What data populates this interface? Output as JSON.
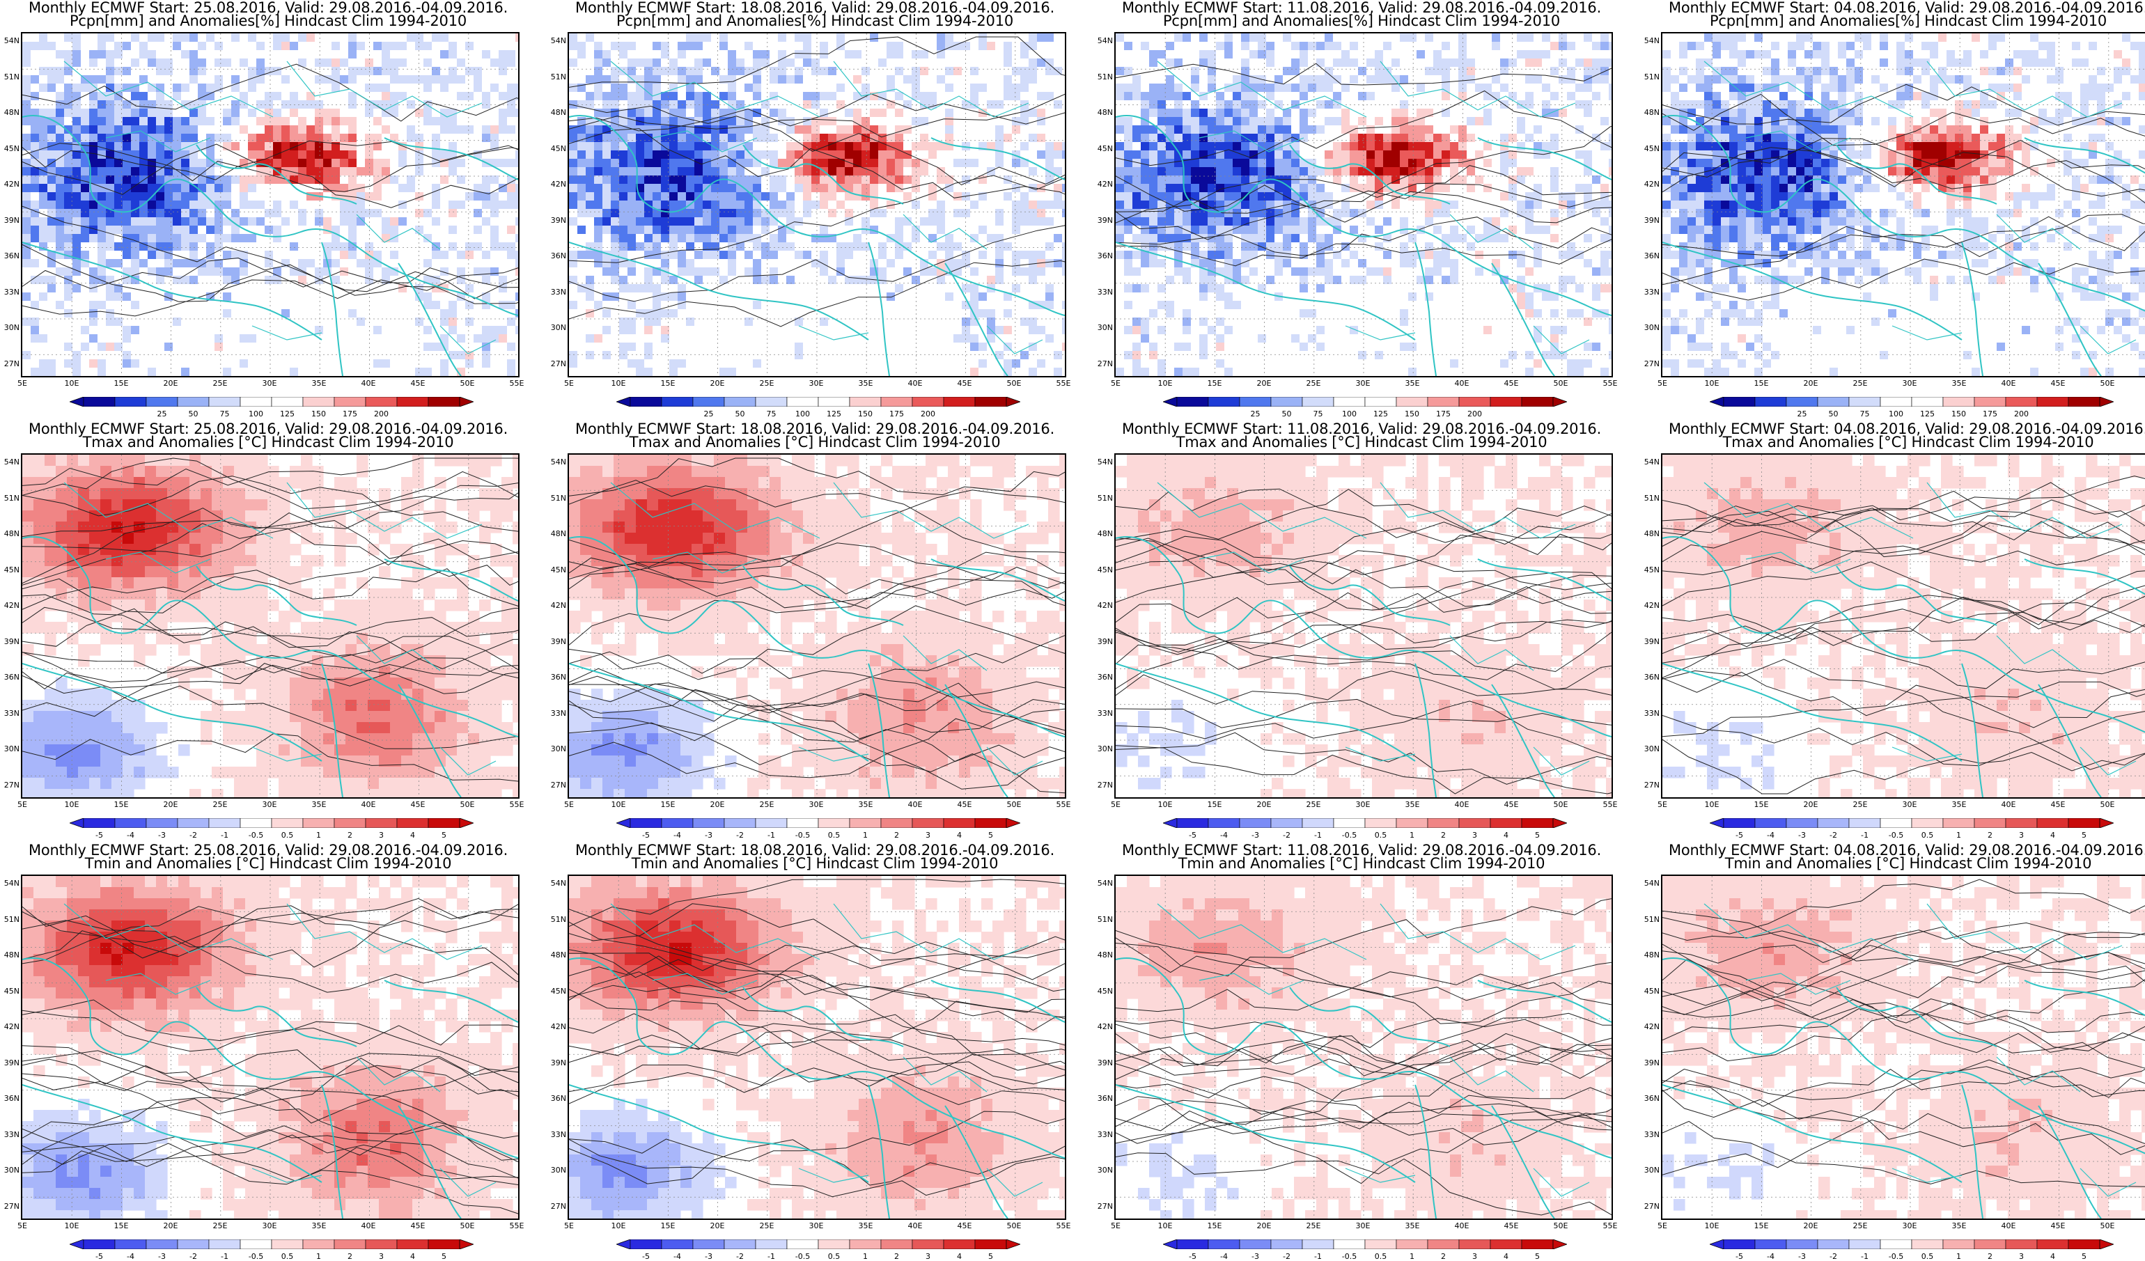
{
  "panels": [
    {
      "line1": "Monthly ECMWF Start: 25.08.2016, Valid: 29.08.2016.-04.09.2016.",
      "line2": "Pcpn[mm] and Anomalies[%] Hindcast Clim 1994-2010",
      "var": "pcpn"
    },
    {
      "line1": "Monthly ECMWF Start: 18.08.2016, Valid: 29.08.2016.-04.09.2016.",
      "line2": "Pcpn[mm] and Anomalies[%] Hindcast Clim 1994-2010",
      "var": "pcpn"
    },
    {
      "line1": "Monthly ECMWF Start: 11.08.2016, Valid: 29.08.2016.-04.09.2016.",
      "line2": "Pcpn[mm] and Anomalies[%] Hindcast Clim 1994-2010",
      "var": "pcpn"
    },
    {
      "line1": "Monthly ECMWF Start: 04.08.2016, Valid: 29.08.2016.-04.09.2016.",
      "line2": "Pcpn[mm] and Anomalies[%] Hindcast Clim 1994-2010",
      "var": "pcpn"
    },
    {
      "line1": "Monthly ECMWF Start: 25.08.2016, Valid: 29.08.2016.-04.09.2016.",
      "line2": "Tmax and Anomalies [°C] Hindcast Clim 1994-2010",
      "var": "tmax"
    },
    {
      "line1": "Monthly ECMWF Start: 18.08.2016, Valid: 29.08.2016.-04.09.2016.",
      "line2": "Tmax and Anomalies [°C] Hindcast Clim 1994-2010",
      "var": "tmax"
    },
    {
      "line1": "Monthly ECMWF Start: 11.08.2016, Valid: 29.08.2016.-04.09.2016.",
      "line2": "Tmax and Anomalies [°C] Hindcast Clim 1994-2010",
      "var": "tmax"
    },
    {
      "line1": "Monthly ECMWF Start: 04.08.2016, Valid: 29.08.2016.-04.09.2016.",
      "line2": "Tmax and Anomalies [°C] Hindcast Clim 1994-2010",
      "var": "tmax"
    },
    {
      "line1": "Monthly ECMWF Start: 25.08.2016, Valid: 29.08.2016.-04.09.2016.",
      "line2": "Tmin and Anomalies [°C] Hindcast Clim 1994-2010",
      "var": "tmin"
    },
    {
      "line1": "Monthly ECMWF Start: 18.08.2016, Valid: 29.08.2016.-04.09.2016.",
      "line2": "Tmin and Anomalies [°C] Hindcast Clim 1994-2010",
      "var": "tmin"
    },
    {
      "line1": "Monthly ECMWF Start: 11.08.2016, Valid: 29.08.2016.-04.09.2016.",
      "line2": "Tmin and Anomalies [°C] Hindcast Clim 1994-2010",
      "var": "tmin"
    },
    {
      "line1": "Monthly ECMWF Start: 04.08.2016, Valid: 29.08.2016.-04.09.2016.",
      "line2": "Tmin and Anomalies [°C] Hindcast Clim 1994-2010",
      "var": "tmin"
    }
  ],
  "axes": {
    "lat_labels": [
      "54N",
      "51N",
      "48N",
      "45N",
      "42N",
      "39N",
      "36N",
      "33N",
      "30N",
      "27N"
    ],
    "lon_labels": [
      "5E",
      "10E",
      "15E",
      "20E",
      "25E",
      "30E",
      "35E",
      "40E",
      "45E",
      "50E",
      "55E"
    ]
  },
  "legends": {
    "pcpn": [
      "25",
      "50",
      "75",
      "100",
      "125",
      "150",
      "175",
      "200"
    ],
    "temp": [
      "-5",
      "-4",
      "-3",
      "-2",
      "-1",
      "-0.5",
      "0.5",
      "1",
      "2",
      "3",
      "4",
      "5"
    ]
  },
  "colors": {
    "coast": "#2fc4c4",
    "pcpn": [
      "#0a0a9a",
      "#1e3cd6",
      "#5078ee",
      "#9ab2f6",
      "#d2dcfa",
      "#ffffff",
      "#ffffff",
      "#fbd0d0",
      "#f59a9a",
      "#ea5a5a",
      "#d21e1e",
      "#a00000"
    ],
    "temp": [
      "#2a2ae0",
      "#4d5cf0",
      "#7b8cf6",
      "#a8b6fa",
      "#d0d8fc",
      "#ffffff",
      "#fcd9d9",
      "#f7b0b0",
      "#f08585",
      "#e65858",
      "#dc3030",
      "#c80a0a"
    ]
  }
}
